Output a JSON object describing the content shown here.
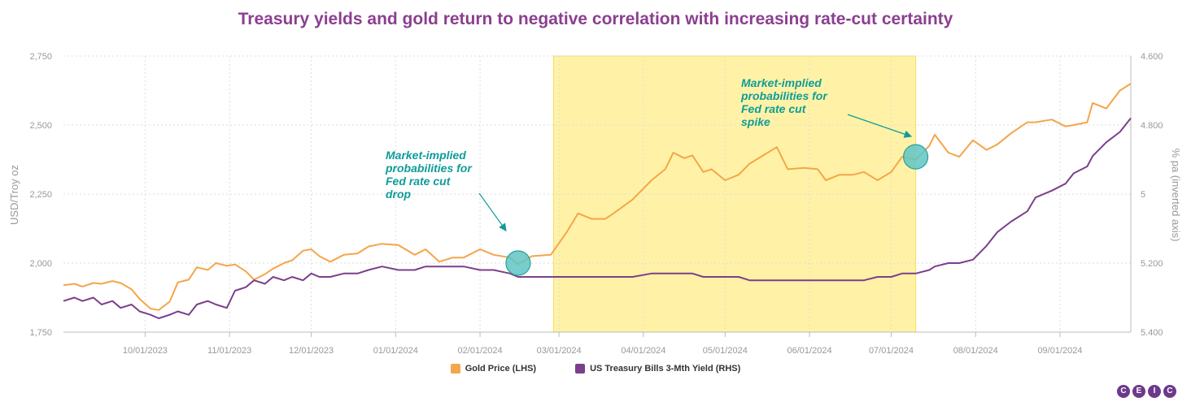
{
  "page": {
    "title": "Treasury yields and gold return to negative correlation with increasing rate-cut certainty"
  },
  "logo": {
    "letters": [
      "C",
      "E",
      "I",
      "C"
    ],
    "color": "#6b3a8c"
  },
  "chart_data": {
    "type": "line",
    "title": "Treasury yields and gold return to negative correlation with increasing rate-cut certainty",
    "y_left": {
      "label": "USD/Troy oz",
      "range": [
        1750,
        2750
      ],
      "ticks": [
        "1,750",
        "2,000",
        "2,250",
        "2,500",
        "2,750"
      ],
      "tick_values": [
        1750,
        2000,
        2250,
        2500,
        2750
      ]
    },
    "y_right": {
      "label": "% pa (inverted axis)",
      "range": [
        5.4,
        4.6
      ],
      "inverted": true,
      "ticks": [
        "5.400",
        "5.200",
        "5",
        "4.800",
        "4.600"
      ],
      "tick_values": [
        5.4,
        5.2,
        5.0,
        4.8,
        4.6
      ]
    },
    "x_ticks": [
      {
        "date": "2023-10-01",
        "label": "10/01/2023"
      },
      {
        "date": "2023-11-01",
        "label": "11/01/2023"
      },
      {
        "date": "2023-12-01",
        "label": "12/01/2023"
      },
      {
        "date": "2024-01-01",
        "label": "01/01/2024"
      },
      {
        "date": "2024-02-01",
        "label": "02/01/2024"
      },
      {
        "date": "2024-03-01",
        "label": "03/01/2024"
      },
      {
        "date": "2024-04-01",
        "label": "04/01/2024"
      },
      {
        "date": "2024-05-01",
        "label": "05/01/2024"
      },
      {
        "date": "2024-06-01",
        "label": "06/01/2024"
      },
      {
        "date": "2024-07-01",
        "label": "07/01/2024"
      },
      {
        "date": "2024-08-01",
        "label": "08/01/2024"
      },
      {
        "date": "2024-09-01",
        "label": "09/01/2024"
      }
    ],
    "x_range": [
      "2023-09-01",
      "2024-09-27"
    ],
    "grid": true,
    "legend_position": "bottom",
    "highlight_band": {
      "from": "2024-02-28",
      "to": "2024-07-10",
      "color": "#fff2a6"
    },
    "series": [
      {
        "name": "Gold Price (LHS)",
        "axis": "left",
        "color": "#f5a54a",
        "points": [
          [
            "2023-09-01",
            1920
          ],
          [
            "2023-09-05",
            1925
          ],
          [
            "2023-09-08",
            1915
          ],
          [
            "2023-09-12",
            1928
          ],
          [
            "2023-09-15",
            1925
          ],
          [
            "2023-09-19",
            1935
          ],
          [
            "2023-09-22",
            1928
          ],
          [
            "2023-09-26",
            1905
          ],
          [
            "2023-09-29",
            1870
          ],
          [
            "2023-10-03",
            1835
          ],
          [
            "2023-10-06",
            1830
          ],
          [
            "2023-10-10",
            1860
          ],
          [
            "2023-10-13",
            1930
          ],
          [
            "2023-10-17",
            1940
          ],
          [
            "2023-10-20",
            1985
          ],
          [
            "2023-10-24",
            1975
          ],
          [
            "2023-10-27",
            2000
          ],
          [
            "2023-10-31",
            1990
          ],
          [
            "2023-11-03",
            1995
          ],
          [
            "2023-11-07",
            1970
          ],
          [
            "2023-11-10",
            1940
          ],
          [
            "2023-11-14",
            1960
          ],
          [
            "2023-11-17",
            1980
          ],
          [
            "2023-11-21",
            2000
          ],
          [
            "2023-11-24",
            2010
          ],
          [
            "2023-11-28",
            2045
          ],
          [
            "2023-12-01",
            2050
          ],
          [
            "2023-12-04",
            2025
          ],
          [
            "2023-12-08",
            2005
          ],
          [
            "2023-12-13",
            2030
          ],
          [
            "2023-12-18",
            2035
          ],
          [
            "2023-12-22",
            2060
          ],
          [
            "2023-12-27",
            2070
          ],
          [
            "2024-01-02",
            2065
          ],
          [
            "2024-01-08",
            2030
          ],
          [
            "2024-01-12",
            2050
          ],
          [
            "2024-01-17",
            2005
          ],
          [
            "2024-01-22",
            2020
          ],
          [
            "2024-01-26",
            2020
          ],
          [
            "2024-02-01",
            2050
          ],
          [
            "2024-02-06",
            2030
          ],
          [
            "2024-02-12",
            2020
          ],
          [
            "2024-02-15",
            1995
          ],
          [
            "2024-02-20",
            2025
          ],
          [
            "2024-02-27",
            2030
          ],
          [
            "2024-03-04",
            2115
          ],
          [
            "2024-03-08",
            2180
          ],
          [
            "2024-03-13",
            2160
          ],
          [
            "2024-03-18",
            2160
          ],
          [
            "2024-03-21",
            2180
          ],
          [
            "2024-03-28",
            2230
          ],
          [
            "2024-04-04",
            2300
          ],
          [
            "2024-04-09",
            2340
          ],
          [
            "2024-04-12",
            2400
          ],
          [
            "2024-04-16",
            2380
          ],
          [
            "2024-04-19",
            2390
          ],
          [
            "2024-04-23",
            2330
          ],
          [
            "2024-04-26",
            2340
          ],
          [
            "2024-05-01",
            2300
          ],
          [
            "2024-05-06",
            2320
          ],
          [
            "2024-05-10",
            2360
          ],
          [
            "2024-05-15",
            2390
          ],
          [
            "2024-05-20",
            2420
          ],
          [
            "2024-05-24",
            2340
          ],
          [
            "2024-05-30",
            2345
          ],
          [
            "2024-06-04",
            2340
          ],
          [
            "2024-06-07",
            2300
          ],
          [
            "2024-06-12",
            2320
          ],
          [
            "2024-06-17",
            2320
          ],
          [
            "2024-06-21",
            2330
          ],
          [
            "2024-06-26",
            2300
          ],
          [
            "2024-07-01",
            2330
          ],
          [
            "2024-07-05",
            2385
          ],
          [
            "2024-07-10",
            2375
          ],
          [
            "2024-07-15",
            2425
          ],
          [
            "2024-07-17",
            2465
          ],
          [
            "2024-07-22",
            2400
          ],
          [
            "2024-07-26",
            2385
          ],
          [
            "2024-07-31",
            2445
          ],
          [
            "2024-08-05",
            2410
          ],
          [
            "2024-08-09",
            2430
          ],
          [
            "2024-08-14",
            2470
          ],
          [
            "2024-08-20",
            2510
          ],
          [
            "2024-08-23",
            2510
          ],
          [
            "2024-08-29",
            2520
          ],
          [
            "2024-09-03",
            2495
          ],
          [
            "2024-09-06",
            2500
          ],
          [
            "2024-09-11",
            2510
          ],
          [
            "2024-09-13",
            2580
          ],
          [
            "2024-09-18",
            2560
          ],
          [
            "2024-09-23",
            2625
          ],
          [
            "2024-09-27",
            2650
          ]
        ]
      },
      {
        "name": "US Treasury Bills 3-Mth Yield (RHS)",
        "axis": "right",
        "color": "#7b3f8c",
        "points": [
          [
            "2023-09-01",
            5.31
          ],
          [
            "2023-09-05",
            5.3
          ],
          [
            "2023-09-08",
            5.31
          ],
          [
            "2023-09-12",
            5.3
          ],
          [
            "2023-09-15",
            5.32
          ],
          [
            "2023-09-19",
            5.31
          ],
          [
            "2023-09-22",
            5.33
          ],
          [
            "2023-09-26",
            5.32
          ],
          [
            "2023-09-29",
            5.34
          ],
          [
            "2023-10-03",
            5.35
          ],
          [
            "2023-10-06",
            5.36
          ],
          [
            "2023-10-10",
            5.35
          ],
          [
            "2023-10-13",
            5.34
          ],
          [
            "2023-10-17",
            5.35
          ],
          [
            "2023-10-20",
            5.32
          ],
          [
            "2023-10-24",
            5.31
          ],
          [
            "2023-10-27",
            5.32
          ],
          [
            "2023-10-31",
            5.33
          ],
          [
            "2023-11-03",
            5.28
          ],
          [
            "2023-11-07",
            5.27
          ],
          [
            "2023-11-10",
            5.25
          ],
          [
            "2023-11-14",
            5.26
          ],
          [
            "2023-11-17",
            5.24
          ],
          [
            "2023-11-21",
            5.25
          ],
          [
            "2023-11-24",
            5.24
          ],
          [
            "2023-11-28",
            5.25
          ],
          [
            "2023-12-01",
            5.23
          ],
          [
            "2023-12-04",
            5.24
          ],
          [
            "2023-12-08",
            5.24
          ],
          [
            "2023-12-13",
            5.23
          ],
          [
            "2023-12-18",
            5.23
          ],
          [
            "2023-12-22",
            5.22
          ],
          [
            "2023-12-27",
            5.21
          ],
          [
            "2024-01-02",
            5.22
          ],
          [
            "2024-01-08",
            5.22
          ],
          [
            "2024-01-12",
            5.21
          ],
          [
            "2024-01-17",
            5.21
          ],
          [
            "2024-01-22",
            5.21
          ],
          [
            "2024-01-26",
            5.21
          ],
          [
            "2024-02-01",
            5.22
          ],
          [
            "2024-02-06",
            5.22
          ],
          [
            "2024-02-12",
            5.23
          ],
          [
            "2024-02-15",
            5.24
          ],
          [
            "2024-02-20",
            5.24
          ],
          [
            "2024-02-27",
            5.24
          ],
          [
            "2024-03-04",
            5.24
          ],
          [
            "2024-03-08",
            5.24
          ],
          [
            "2024-03-13",
            5.24
          ],
          [
            "2024-03-18",
            5.24
          ],
          [
            "2024-03-21",
            5.24
          ],
          [
            "2024-03-28",
            5.24
          ],
          [
            "2024-04-04",
            5.23
          ],
          [
            "2024-04-09",
            5.23
          ],
          [
            "2024-04-12",
            5.23
          ],
          [
            "2024-04-16",
            5.23
          ],
          [
            "2024-04-19",
            5.23
          ],
          [
            "2024-04-23",
            5.24
          ],
          [
            "2024-04-26",
            5.24
          ],
          [
            "2024-05-01",
            5.24
          ],
          [
            "2024-05-06",
            5.24
          ],
          [
            "2024-05-10",
            5.25
          ],
          [
            "2024-05-15",
            5.25
          ],
          [
            "2024-05-20",
            5.25
          ],
          [
            "2024-05-24",
            5.25
          ],
          [
            "2024-05-30",
            5.25
          ],
          [
            "2024-06-04",
            5.25
          ],
          [
            "2024-06-07",
            5.25
          ],
          [
            "2024-06-12",
            5.25
          ],
          [
            "2024-06-17",
            5.25
          ],
          [
            "2024-06-21",
            5.25
          ],
          [
            "2024-06-26",
            5.24
          ],
          [
            "2024-07-01",
            5.24
          ],
          [
            "2024-07-05",
            5.23
          ],
          [
            "2024-07-10",
            5.23
          ],
          [
            "2024-07-15",
            5.22
          ],
          [
            "2024-07-17",
            5.21
          ],
          [
            "2024-07-22",
            5.2
          ],
          [
            "2024-07-26",
            5.2
          ],
          [
            "2024-07-31",
            5.19
          ],
          [
            "2024-08-05",
            5.15
          ],
          [
            "2024-08-09",
            5.11
          ],
          [
            "2024-08-14",
            5.08
          ],
          [
            "2024-08-20",
            5.05
          ],
          [
            "2024-08-23",
            5.01
          ],
          [
            "2024-08-29",
            4.99
          ],
          [
            "2024-09-03",
            4.97
          ],
          [
            "2024-09-06",
            4.94
          ],
          [
            "2024-09-11",
            4.92
          ],
          [
            "2024-09-13",
            4.89
          ],
          [
            "2024-09-18",
            4.85
          ],
          [
            "2024-09-23",
            4.82
          ],
          [
            "2024-09-27",
            4.78
          ]
        ]
      }
    ],
    "annotations": [
      {
        "lines": [
          "Market-implied",
          "probabilities for",
          "Fed rate cut",
          "drop"
        ],
        "target": {
          "date": "2024-02-15",
          "value": 2000
        }
      },
      {
        "lines": [
          "Market-implied",
          "probabilities for",
          "Fed rate cut",
          "spike"
        ],
        "target": {
          "date": "2024-07-10",
          "value": 2385
        }
      }
    ]
  }
}
